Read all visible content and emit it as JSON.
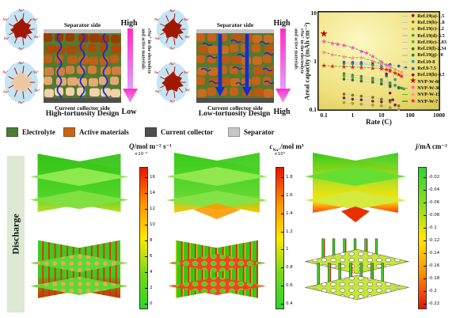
{
  "top": {
    "na_label": "Na⁺",
    "high": {
      "separator_label": "Separator side",
      "collector_label": "Current collector side",
      "title": "High-tortuosity Design",
      "arrow_top": "High",
      "arrow_bottom": "Low",
      "arrow_line1": "cNa⁺ in the electrolyte",
      "arrow_line2": "and active materials"
    },
    "low": {
      "separator_label": "Separator side",
      "collector_label": "Current collector side",
      "title": "Low-tortuosity Design",
      "arrow_top": "High",
      "arrow_bottom": "High",
      "arrow_line1": "cNa⁺ in the electrolyte",
      "arrow_line2": "and active materials"
    }
  },
  "materials_legend": [
    {
      "label": "Electrolyte",
      "color": "#4e7b35"
    },
    {
      "label": "Active materials",
      "color": "#c8651b"
    },
    {
      "label": "Current collector",
      "color": "#4f4f4f"
    },
    {
      "label": "Separator",
      "color": "#c6c6c6"
    }
  ],
  "chart_data": {
    "type": "scatter",
    "xlabel": "Rate (C)",
    "ylabel": "Areal capacity (mAh cm⁻²)",
    "xscale": "log",
    "yscale": "log",
    "xlim": [
      0.06,
      1100
    ],
    "ylim": [
      0.095,
      11
    ],
    "xticks": [
      0.1,
      1,
      10,
      100,
      1000
    ],
    "yticks": [
      10,
      1,
      0.1
    ],
    "legend_position": "inside-right",
    "ref_line_color": "#c8c8c8",
    "nvp_line_color": "#5cb81e",
    "background": [
      "#fcf8c2",
      "#d2bd48"
    ],
    "series": [
      {
        "name": "Ref.19(a)-1.5",
        "marker": "dot",
        "color": "#7a2050",
        "line": "gray",
        "points": [
          [
            0.5,
            0.175
          ],
          [
            1,
            0.165
          ],
          [
            2,
            0.16
          ],
          [
            5,
            0.15
          ],
          [
            10,
            0.145
          ],
          [
            20,
            0.155
          ],
          [
            30,
            0.125
          ]
        ]
      },
      {
        "name": "Ref.19(b)-1.8",
        "marker": "dot",
        "color": "#8a7420",
        "line": "gray",
        "points": [
          [
            0.5,
            0.21
          ],
          [
            1,
            0.2
          ],
          [
            2,
            0.19
          ],
          [
            5,
            0.18
          ],
          [
            10,
            0.165
          ],
          [
            20,
            0.145
          ],
          [
            40,
            0.12
          ]
        ]
      },
      {
        "name": "Ref.19(c)-1.2",
        "marker": "dot",
        "color": "#b6a22e",
        "line": "gray",
        "points": [
          [
            0.5,
            0.14
          ],
          [
            1,
            0.135
          ],
          [
            2,
            0.13
          ],
          [
            5,
            0.125
          ],
          [
            10,
            0.12
          ],
          [
            20,
            0.11
          ],
          [
            40,
            0.1
          ]
        ]
      },
      {
        "name": "Ref.19(d)-3.5",
        "marker": "dot",
        "color": "#4a9c28",
        "line": "gray",
        "points": [
          [
            0.5,
            0.56
          ],
          [
            1,
            0.52
          ],
          [
            2,
            0.49
          ],
          [
            5,
            0.45
          ],
          [
            10,
            0.42
          ],
          [
            20,
            0.36
          ],
          [
            30,
            0.32
          ],
          [
            60,
            0.27
          ]
        ]
      },
      {
        "name": "Ref.19(e)-3.83",
        "marker": "dot",
        "color": "#6aaa2a",
        "line": "gray",
        "points": [
          [
            0.5,
            0.5
          ],
          [
            1,
            0.47
          ],
          [
            2,
            0.44
          ],
          [
            5,
            0.41
          ],
          [
            10,
            0.38
          ],
          [
            20,
            0.33
          ],
          [
            40,
            0.29
          ]
        ]
      },
      {
        "name": "Ref.19(f)-2.34",
        "marker": "dot",
        "color": "#2c7a1e",
        "line": "gray",
        "points": [
          [
            0.5,
            0.43
          ],
          [
            1,
            0.41
          ],
          [
            2,
            0.39
          ],
          [
            5,
            0.37
          ],
          [
            10,
            0.34
          ],
          [
            20,
            0.31
          ],
          [
            40,
            0.28
          ]
        ]
      },
      {
        "name": "Ref.19(g)-10",
        "marker": "dot",
        "color": "#1a7a68",
        "line": "gray",
        "points": [
          [
            1,
            0.92
          ],
          [
            2,
            0.9
          ],
          [
            5,
            0.86
          ],
          [
            10,
            0.78
          ],
          [
            15,
            0.5
          ],
          [
            20,
            0.3
          ]
        ]
      },
      {
        "name": "Ref.10-8",
        "marker": "dot",
        "color": "#28a0b4",
        "line": "gray",
        "points": [
          [
            0.5,
            0.9
          ],
          [
            1,
            0.88
          ],
          [
            2,
            0.86
          ],
          [
            5,
            0.83
          ],
          [
            10,
            0.78
          ],
          [
            20,
            0.66
          ],
          [
            30,
            0.42
          ],
          [
            50,
            0.28
          ]
        ]
      },
      {
        "name": "Ref.9-7.5",
        "marker": "dot",
        "color": "#2868c8",
        "line": "gray",
        "points": [
          [
            0.5,
            0.97
          ],
          [
            1,
            0.96
          ],
          [
            2,
            0.95
          ],
          [
            5,
            0.93
          ],
          [
            10,
            0.9
          ],
          [
            20,
            0.86
          ],
          [
            40,
            0.8
          ],
          [
            70,
            0.74
          ]
        ]
      },
      {
        "name": "Ref.19(h)-8.5",
        "marker": "dot",
        "color": "#7a2030",
        "line": "gray",
        "points": [
          [
            5,
            0.95
          ],
          [
            10,
            0.88
          ],
          [
            15,
            0.55
          ],
          [
            20,
            0.22
          ],
          [
            25,
            0.16
          ]
        ]
      },
      {
        "name": "NVP-W-60",
        "marker": "star",
        "size": 12,
        "color": "#c00008",
        "line": "none",
        "points": [
          [
            0.1,
            3.8
          ]
        ]
      },
      {
        "name": "NVP-W-30",
        "marker": "star",
        "size": 8,
        "color": "#ff46d8",
        "line": "green-dash",
        "points": [
          [
            0.1,
            2.6
          ],
          [
            0.2,
            2.4
          ],
          [
            0.3,
            2.3
          ],
          [
            0.5,
            2.15
          ],
          [
            1,
            1.95
          ],
          [
            2,
            1.62
          ],
          [
            3,
            1.5
          ],
          [
            5,
            1.28
          ],
          [
            10,
            0.98
          ],
          [
            15,
            0.85
          ],
          [
            20,
            0.78
          ]
        ]
      },
      {
        "name": "NVP-W-15",
        "marker": "star",
        "size": 8,
        "color": "#f89090",
        "line": "green-dash",
        "points": [
          [
            0.1,
            1.55
          ],
          [
            0.2,
            1.38
          ],
          [
            0.5,
            1.26
          ],
          [
            1,
            1.18
          ],
          [
            2,
            1.2
          ],
          [
            5,
            1.02
          ],
          [
            10,
            0.9
          ],
          [
            20,
            0.78
          ],
          [
            30,
            0.68
          ],
          [
            50,
            0.6
          ]
        ]
      },
      {
        "name": "NVP-W-7",
        "marker": "star",
        "size": 8,
        "color": "#ee1c10",
        "line": "green-dash",
        "points": [
          [
            0.1,
            0.82
          ],
          [
            0.2,
            0.8
          ],
          [
            0.5,
            0.78
          ],
          [
            1,
            0.77
          ],
          [
            2,
            0.75
          ],
          [
            5,
            0.73
          ],
          [
            10,
            0.71
          ],
          [
            15,
            0.68
          ],
          [
            20,
            0.64
          ],
          [
            30,
            0.58
          ],
          [
            40,
            0.54
          ],
          [
            50,
            0.5
          ]
        ]
      }
    ]
  },
  "bottom": {
    "discharge_label": "Discharge",
    "panels": [
      {
        "label_var": "Q",
        "label_sub": "",
        "label_rest": "/mol m⁻² s⁻¹",
        "multiplier": "×10⁻⁵",
        "colorbar": {
          "gradient": [
            "#e81400",
            "#ff9000",
            "#ffe800",
            "#7ad818",
            "#2cd62c"
          ],
          "ticks": [
            16,
            14,
            12,
            10,
            8,
            6,
            4,
            2,
            0
          ]
        }
      },
      {
        "label_var": "c",
        "label_sub": "Na⁺",
        "label_rest": "/mol m³",
        "multiplier": "×10³",
        "colorbar": {
          "gradient": [
            "#e81400",
            "#ff9000",
            "#ffe800",
            "#7ad818",
            "#2cd62c"
          ],
          "ticks": [
            1.8,
            1.6,
            1.4,
            1.2,
            1,
            0.8,
            0.6,
            0.4
          ]
        }
      },
      {
        "label_var": "j",
        "label_sub": "",
        "label_rest": "/mA cm⁻²",
        "multiplier": "",
        "colorbar": {
          "gradient": [
            "#2cd62c",
            "#8ade1c",
            "#ffe800",
            "#ff9000",
            "#e81400"
          ],
          "ticks": [
            -0.02,
            -0.04,
            -0.06,
            -0.08,
            -0.1,
            -0.12,
            -0.14,
            -0.16,
            -0.18,
            -0.2,
            -0.22
          ]
        }
      }
    ]
  }
}
